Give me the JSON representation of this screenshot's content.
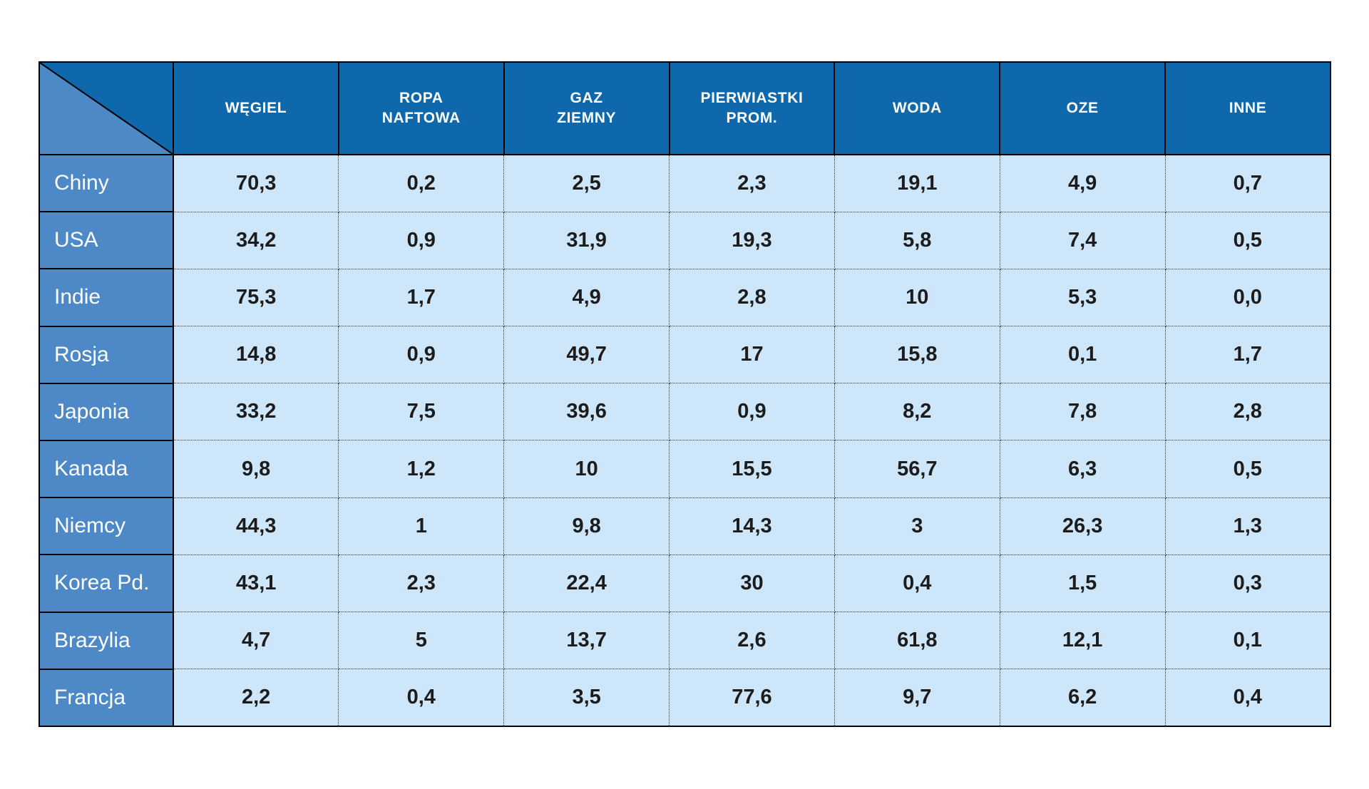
{
  "page": {
    "background": "#ffffff"
  },
  "table": {
    "colors": {
      "page_bg": "#ffffff",
      "header_bg": "#0e68ab",
      "row_header_bg": "#4d89c6",
      "cell_bg": "#cde6fa",
      "border": "#000000"
    },
    "columns": [
      {
        "lines": [
          "WĘGIEL"
        ]
      },
      {
        "lines": [
          "ROPA",
          "NAFTOWA"
        ]
      },
      {
        "lines": [
          "GAZ",
          "ZIEMNY"
        ]
      },
      {
        "lines": [
          "PIERWIASTKI",
          "PROM."
        ]
      },
      {
        "lines": [
          "WODA"
        ]
      },
      {
        "lines": [
          "OZE"
        ]
      },
      {
        "lines": [
          "INNE"
        ]
      }
    ],
    "rows": [
      {
        "label": "Chiny",
        "values": [
          "70,3",
          "0,2",
          "2,5",
          "2,3",
          "19,1",
          "4,9",
          "0,7"
        ]
      },
      {
        "label": "USA",
        "values": [
          "34,2",
          "0,9",
          "31,9",
          "19,3",
          "5,8",
          "7,4",
          "0,5"
        ]
      },
      {
        "label": "Indie",
        "values": [
          "75,3",
          "1,7",
          "4,9",
          "2,8",
          "10",
          "5,3",
          "0,0"
        ]
      },
      {
        "label": "Rosja",
        "values": [
          "14,8",
          "0,9",
          "49,7",
          "17",
          "15,8",
          "0,1",
          "1,7"
        ]
      },
      {
        "label": "Japonia",
        "values": [
          "33,2",
          "7,5",
          "39,6",
          "0,9",
          "8,2",
          "7,8",
          "2,8"
        ]
      },
      {
        "label": "Kanada",
        "values": [
          "9,8",
          "1,2",
          "10",
          "15,5",
          "56,7",
          "6,3",
          "0,5"
        ]
      },
      {
        "label": "Niemcy",
        "values": [
          "44,3",
          "1",
          "9,8",
          "14,3",
          "3",
          "26,3",
          "1,3"
        ]
      },
      {
        "label": "Korea Pd.",
        "values": [
          "43,1",
          "2,3",
          "22,4",
          "30",
          "0,4",
          "1,5",
          "0,3"
        ]
      },
      {
        "label": "Brazylia",
        "values": [
          "4,7",
          "5",
          "13,7",
          "2,6",
          "61,8",
          "12,1",
          "0,1"
        ]
      },
      {
        "label": "Francja",
        "values": [
          "2,2",
          "0,4",
          "3,5",
          "77,6",
          "9,7",
          "6,2",
          "0,4"
        ]
      }
    ]
  },
  "chart_data": {
    "type": "table",
    "columns": [
      "WĘGIEL",
      "ROPA NAFTOWA",
      "GAZ ZIEMNY",
      "PIERWIASTKI PROM.",
      "WODA",
      "OZE",
      "INNE"
    ],
    "rows": [
      {
        "name": "Chiny",
        "values": [
          70.3,
          0.2,
          2.5,
          2.3,
          19.1,
          4.9,
          0.7
        ]
      },
      {
        "name": "USA",
        "values": [
          34.2,
          0.9,
          31.9,
          19.3,
          5.8,
          7.4,
          0.5
        ]
      },
      {
        "name": "Indie",
        "values": [
          75.3,
          1.7,
          4.9,
          2.8,
          10,
          5.3,
          0.0
        ]
      },
      {
        "name": "Rosja",
        "values": [
          14.8,
          0.9,
          49.7,
          17,
          15.8,
          0.1,
          1.7
        ]
      },
      {
        "name": "Japonia",
        "values": [
          33.2,
          7.5,
          39.6,
          0.9,
          8.2,
          7.8,
          2.8
        ]
      },
      {
        "name": "Kanada",
        "values": [
          9.8,
          1.2,
          10,
          15.5,
          56.7,
          6.3,
          0.5
        ]
      },
      {
        "name": "Niemcy",
        "values": [
          44.3,
          1,
          9.8,
          14.3,
          3,
          26.3,
          1.3
        ]
      },
      {
        "name": "Korea Pd.",
        "values": [
          43.1,
          2.3,
          22.4,
          30,
          0.4,
          1.5,
          0.3
        ]
      },
      {
        "name": "Brazylia",
        "values": [
          4.7,
          5,
          13.7,
          2.6,
          61.8,
          12.1,
          0.1
        ]
      },
      {
        "name": "Francja",
        "values": [
          2.2,
          0.4,
          3.5,
          77.6,
          9.7,
          6.2,
          0.4
        ]
      }
    ],
    "notes": "decimal comma formatting as displayed"
  }
}
